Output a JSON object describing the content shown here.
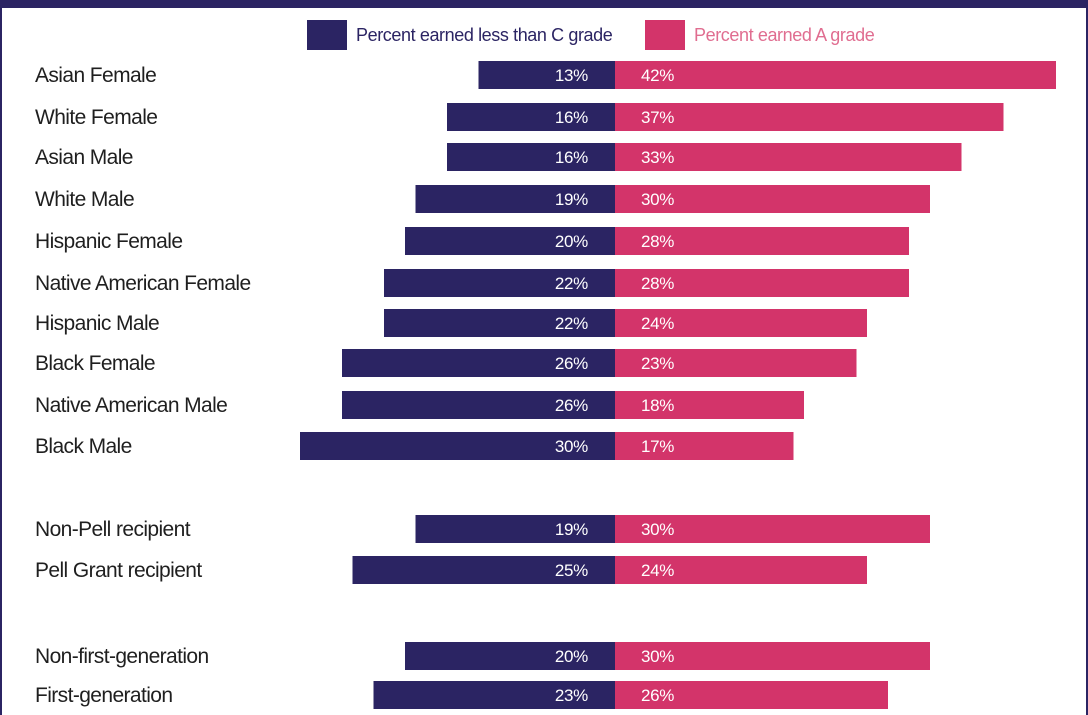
{
  "legend": {
    "less_than_c": "Percent earned less than C grade",
    "a_grade": "Percent earned A grade"
  },
  "colors": {
    "less_than_c": "#2b2463",
    "a_grade": "#d3346a",
    "a_grade_legend_text": "#e06d90",
    "frame": "#2b2463"
  },
  "chart_data": {
    "type": "bar",
    "orientation": "horizontal-diverging",
    "categories": [
      "Asian Female",
      "White Female",
      "Asian Male",
      "White Male",
      "Hispanic Female",
      "Native American Female",
      "Hispanic Male",
      "Black Female",
      "Native American Male",
      "Black Male",
      "Non-Pell recipient",
      "Pell Grant recipient",
      "Non-first-generation",
      "First-generation"
    ],
    "series": [
      {
        "name": "Percent earned less than C grade",
        "values": [
          13,
          16,
          16,
          19,
          20,
          22,
          22,
          26,
          26,
          30,
          19,
          25,
          20,
          23
        ]
      },
      {
        "name": "Percent earned A grade",
        "values": [
          42,
          37,
          33,
          30,
          28,
          28,
          24,
          23,
          18,
          17,
          30,
          24,
          30,
          26
        ]
      }
    ],
    "groups": [
      [
        "Asian Female",
        "White Female",
        "Asian Male",
        "White Male",
        "Hispanic Female",
        "Native American Female",
        "Hispanic Male",
        "Black Female",
        "Native American Male",
        "Black Male"
      ],
      [
        "Non-Pell recipient",
        "Pell Grant recipient"
      ],
      [
        "Non-first-generation",
        "First-generation"
      ]
    ],
    "value_suffix": "%",
    "legend_position": "top",
    "grid": false
  }
}
